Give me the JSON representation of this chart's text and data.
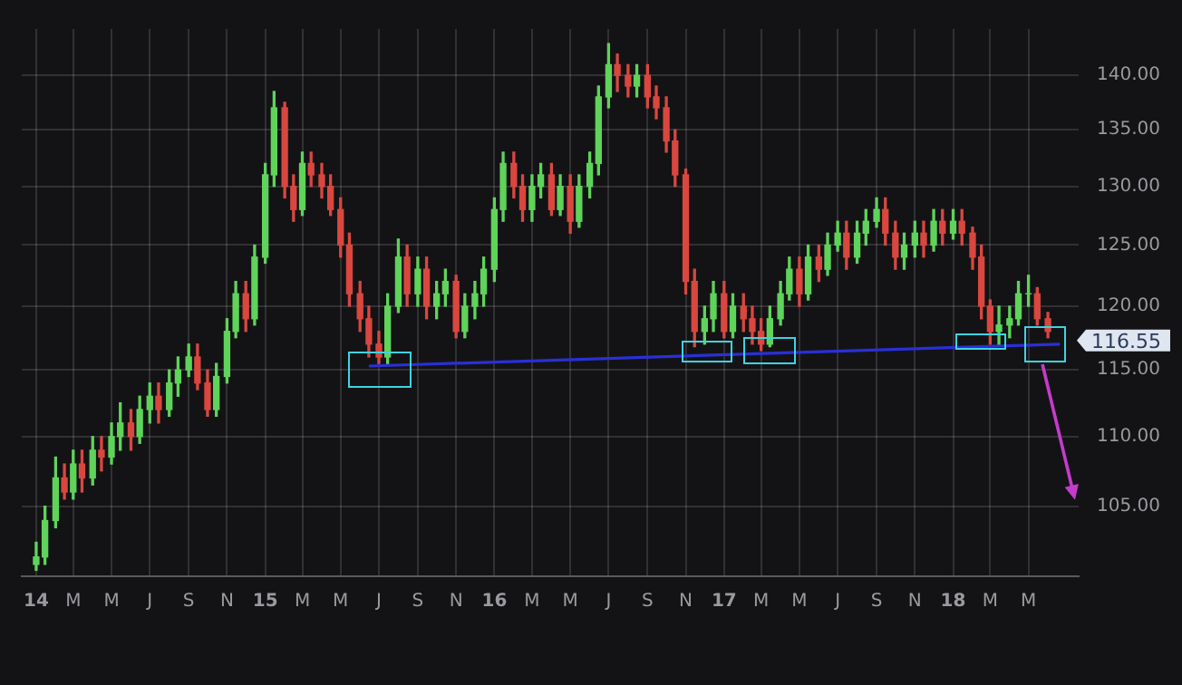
{
  "chart_data": {
    "type": "candlestick",
    "x": [
      "2014-01-01",
      "2014-01-15",
      "2014-02-01",
      "2014-02-15",
      "2014-03-01",
      "2014-03-15",
      "2014-04-01",
      "2014-04-15",
      "2014-05-01",
      "2014-05-15",
      "2014-06-01",
      "2014-06-15",
      "2014-07-01",
      "2014-07-15",
      "2014-08-01",
      "2014-08-15",
      "2014-09-01",
      "2014-09-15",
      "2014-10-01",
      "2014-10-15",
      "2014-11-01",
      "2014-11-15",
      "2014-12-01",
      "2014-12-15",
      "2015-01-01",
      "2015-01-15",
      "2015-02-01",
      "2015-02-15",
      "2015-03-01",
      "2015-03-15",
      "2015-04-01",
      "2015-04-15",
      "2015-05-01",
      "2015-05-15",
      "2015-06-01",
      "2015-06-15",
      "2015-07-01",
      "2015-07-15",
      "2015-08-01",
      "2015-08-15",
      "2015-09-01",
      "2015-09-15",
      "2015-10-01",
      "2015-10-15",
      "2015-11-01",
      "2015-11-15",
      "2015-12-01",
      "2015-12-15",
      "2016-01-01",
      "2016-01-15",
      "2016-02-01",
      "2016-02-15",
      "2016-03-01",
      "2016-03-15",
      "2016-04-01",
      "2016-04-15",
      "2016-05-01",
      "2016-05-15",
      "2016-06-01",
      "2016-06-15",
      "2016-07-01",
      "2016-07-15",
      "2016-08-01",
      "2016-08-15",
      "2016-09-01",
      "2016-09-15",
      "2016-10-01",
      "2016-10-15",
      "2016-11-01",
      "2016-11-15",
      "2016-12-01",
      "2016-12-15",
      "2017-01-01",
      "2017-01-15",
      "2017-02-01",
      "2017-02-15",
      "2017-03-01",
      "2017-03-15",
      "2017-04-01",
      "2017-04-15",
      "2017-05-01",
      "2017-05-15",
      "2017-06-01",
      "2017-06-15",
      "2017-07-01",
      "2017-07-15",
      "2017-08-01",
      "2017-08-15",
      "2017-09-01",
      "2017-09-15",
      "2017-10-01",
      "2017-10-15",
      "2017-11-01",
      "2017-11-15",
      "2017-12-01",
      "2017-12-15",
      "2018-01-01",
      "2018-01-15",
      "2018-02-01",
      "2018-02-15",
      "2018-03-01",
      "2018-03-15",
      "2018-04-01",
      "2018-04-15",
      "2018-05-01",
      "2018-05-15",
      "2018-06-01"
    ],
    "ohlc": [
      [
        101,
        102.5,
        100.6,
        101.5
      ],
      [
        101.5,
        105,
        101,
        104
      ],
      [
        104,
        108.5,
        103.5,
        107
      ],
      [
        107,
        108,
        105.5,
        106
      ],
      [
        106,
        109,
        105.5,
        108
      ],
      [
        108,
        109,
        106,
        107
      ],
      [
        107,
        110,
        106.5,
        109
      ],
      [
        109,
        110,
        107.5,
        108.5
      ],
      [
        108.5,
        111,
        108,
        110
      ],
      [
        110,
        112.5,
        109,
        111
      ],
      [
        111,
        112,
        109,
        110
      ],
      [
        110,
        113,
        109.5,
        112
      ],
      [
        112,
        114,
        111,
        113
      ],
      [
        113,
        114,
        111,
        112
      ],
      [
        112,
        115,
        111.5,
        114
      ],
      [
        114,
        116,
        113,
        115
      ],
      [
        115,
        117,
        114.5,
        116
      ],
      [
        116,
        117,
        113.5,
        114
      ],
      [
        114,
        115,
        111.5,
        112
      ],
      [
        112,
        115.5,
        111.5,
        114.5
      ],
      [
        114.5,
        119,
        114,
        118
      ],
      [
        118,
        122,
        117.5,
        121
      ],
      [
        121,
        122,
        118,
        119
      ],
      [
        119,
        125,
        118.5,
        124
      ],
      [
        124,
        132,
        123.5,
        131
      ],
      [
        131,
        138.5,
        130,
        137
      ],
      [
        137,
        137.5,
        129,
        130
      ],
      [
        130,
        131,
        127,
        128
      ],
      [
        128,
        133,
        127.5,
        132
      ],
      [
        132,
        133,
        130,
        131
      ],
      [
        131,
        132,
        129,
        130
      ],
      [
        130,
        131,
        127.5,
        128
      ],
      [
        128,
        129,
        124,
        125
      ],
      [
        125,
        126,
        120,
        121
      ],
      [
        121,
        122,
        118,
        119
      ],
      [
        119,
        120,
        116,
        117
      ],
      [
        117,
        118,
        115.5,
        116
      ],
      [
        116,
        121,
        115.5,
        120
      ],
      [
        120,
        125.5,
        119.5,
        124
      ],
      [
        124,
        125,
        120,
        121
      ],
      [
        121,
        124,
        120,
        123
      ],
      [
        123,
        124,
        119,
        120
      ],
      [
        120,
        122,
        119,
        121
      ],
      [
        121,
        123,
        120,
        122
      ],
      [
        122,
        122.5,
        117.5,
        118
      ],
      [
        118,
        121,
        117.5,
        120
      ],
      [
        120,
        122,
        119,
        121
      ],
      [
        121,
        124,
        120,
        123
      ],
      [
        123,
        129,
        122,
        128
      ],
      [
        128,
        133,
        127,
        132
      ],
      [
        132,
        133,
        129,
        130
      ],
      [
        130,
        131,
        127,
        128
      ],
      [
        128,
        131,
        127,
        130
      ],
      [
        130,
        132,
        129,
        131
      ],
      [
        131,
        132,
        127.5,
        128
      ],
      [
        128,
        131,
        127.5,
        130
      ],
      [
        130,
        131,
        126,
        127
      ],
      [
        127,
        131,
        126.5,
        130
      ],
      [
        130,
        133,
        129,
        132
      ],
      [
        132,
        139,
        131,
        138
      ],
      [
        138,
        143,
        137,
        141
      ],
      [
        141,
        142,
        138.5,
        140
      ],
      [
        140,
        141,
        138,
        139
      ],
      [
        139,
        141,
        138,
        140
      ],
      [
        140,
        141,
        137,
        138
      ],
      [
        138,
        139,
        136,
        137
      ],
      [
        137,
        138,
        133,
        134
      ],
      [
        134,
        135,
        130,
        131
      ],
      [
        131,
        131.5,
        121,
        122
      ],
      [
        122,
        123,
        116.8,
        118
      ],
      [
        118,
        120,
        117,
        119
      ],
      [
        119,
        122,
        118,
        121
      ],
      [
        121,
        122,
        117.5,
        118
      ],
      [
        118,
        121,
        117.5,
        120
      ],
      [
        120,
        121,
        118,
        119
      ],
      [
        119,
        120,
        117,
        118
      ],
      [
        118,
        119,
        116.5,
        117
      ],
      [
        117,
        120,
        116.8,
        119
      ],
      [
        119,
        122,
        118.5,
        121
      ],
      [
        121,
        124,
        120.5,
        123
      ],
      [
        123,
        124,
        120,
        121
      ],
      [
        121,
        125,
        120.5,
        124
      ],
      [
        124,
        125,
        122,
        123
      ],
      [
        123,
        126,
        122.5,
        125
      ],
      [
        125,
        127,
        124.5,
        126
      ],
      [
        126,
        127,
        123,
        124
      ],
      [
        124,
        127,
        123.5,
        126
      ],
      [
        126,
        128,
        125,
        127
      ],
      [
        127,
        129,
        126.5,
        128
      ],
      [
        128,
        129,
        125,
        126
      ],
      [
        126,
        127,
        123,
        124
      ],
      [
        124,
        126,
        123,
        125
      ],
      [
        125,
        127,
        124,
        126
      ],
      [
        126,
        127,
        124,
        125
      ],
      [
        125,
        128,
        124.5,
        127
      ],
      [
        127,
        128,
        125,
        126
      ],
      [
        126,
        128,
        125.5,
        127
      ],
      [
        127,
        128,
        125,
        126
      ],
      [
        126,
        126.5,
        123,
        124
      ],
      [
        124,
        125,
        119,
        120
      ],
      [
        120,
        120.5,
        117,
        118
      ],
      [
        118,
        120,
        117,
        118.5
      ],
      [
        118.5,
        120,
        117.5,
        119
      ],
      [
        119,
        122,
        118.5,
        121
      ],
      [
        121,
        122.5,
        120,
        121
      ],
      [
        121,
        121.5,
        118.5,
        119
      ],
      [
        119,
        119.5,
        117.5,
        118
      ]
    ],
    "series": [
      {
        "type": "line",
        "color": "#2a2fd8",
        "x": [
          "2015-06-15",
          "2018-06-20"
        ],
        "values": [
          115.3,
          117
        ]
      }
    ],
    "xlim": [
      "2013-12-09",
      "2018-07-20"
    ],
    "xticks": [
      {
        "value": "2014-01-01",
        "label": "14"
      },
      {
        "value": "2014-03-01",
        "label": "M"
      },
      {
        "value": "2014-05-01",
        "label": "M"
      },
      {
        "value": "2014-07-01",
        "label": "J"
      },
      {
        "value": "2014-09-01",
        "label": "S"
      },
      {
        "value": "2014-11-01",
        "label": "N"
      },
      {
        "value": "2015-01-01",
        "label": "15"
      },
      {
        "value": "2015-03-01",
        "label": "M"
      },
      {
        "value": "2015-05-01",
        "label": "M"
      },
      {
        "value": "2015-07-01",
        "label": "J"
      },
      {
        "value": "2015-09-01",
        "label": "S"
      },
      {
        "value": "2015-11-01",
        "label": "N"
      },
      {
        "value": "2016-01-01",
        "label": "16"
      },
      {
        "value": "2016-03-01",
        "label": "M"
      },
      {
        "value": "2016-05-01",
        "label": "M"
      },
      {
        "value": "2016-07-01",
        "label": "J"
      },
      {
        "value": "2016-09-01",
        "label": "S"
      },
      {
        "value": "2016-11-01",
        "label": "N"
      },
      {
        "value": "2017-01-01",
        "label": "17"
      },
      {
        "value": "2017-03-01",
        "label": "M"
      },
      {
        "value": "2017-05-01",
        "label": "M"
      },
      {
        "value": "2017-07-01",
        "label": "J"
      },
      {
        "value": "2017-09-01",
        "label": "S"
      },
      {
        "value": "2017-11-01",
        "label": "N"
      },
      {
        "value": "2018-01-01",
        "label": "18"
      },
      {
        "value": "2018-03-01",
        "label": "M"
      },
      {
        "value": "2018-05-01",
        "label": "M"
      }
    ],
    "ylim": [
      100.2,
      144.4
    ],
    "yticks": [
      {
        "value": 105,
        "label": "105.00"
      },
      {
        "value": 110,
        "label": "110.00"
      },
      {
        "value": 115,
        "label": "115.00"
      },
      {
        "value": 120,
        "label": "120.00"
      },
      {
        "value": 125,
        "label": "125.00"
      },
      {
        "value": 130,
        "label": "130.00"
      },
      {
        "value": 135,
        "label": "135.00"
      },
      {
        "value": 140,
        "label": "140.00"
      }
    ],
    "log": "y",
    "grid": true,
    "legend": false,
    "annotations": [
      "116.55"
    ]
  }
}
